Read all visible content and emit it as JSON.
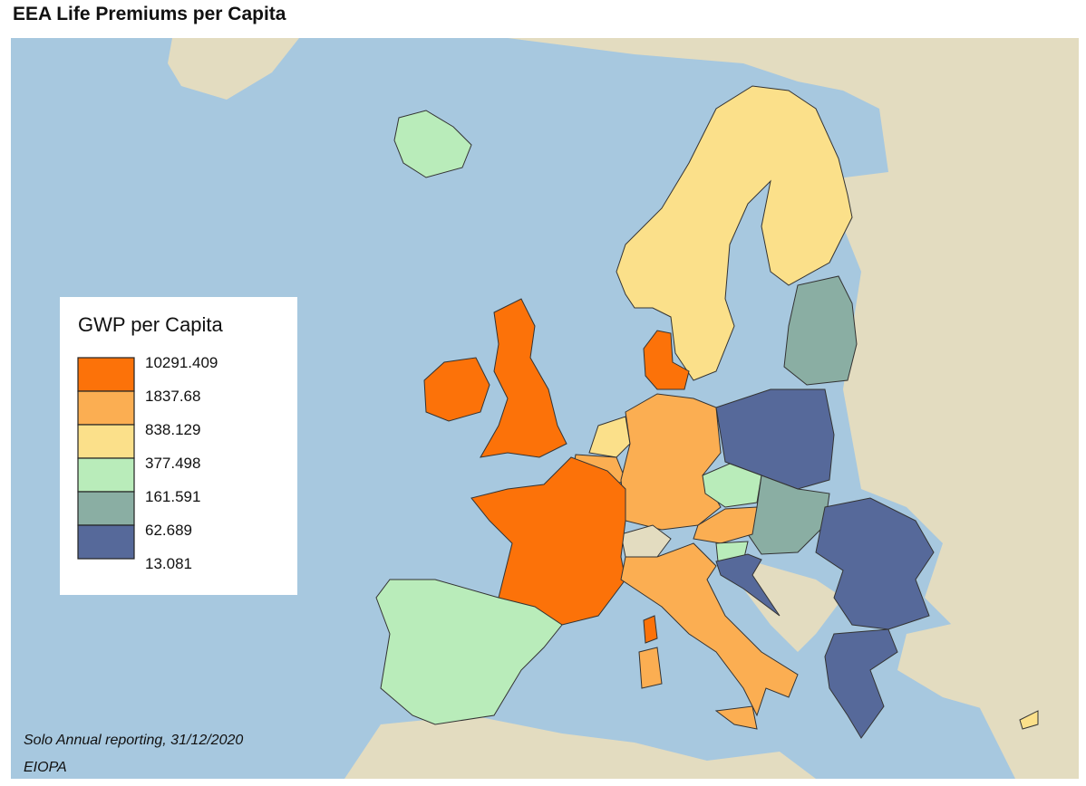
{
  "header": {
    "title": "EEA Life Premiums per Capita"
  },
  "legend": {
    "title": "GWP per Capita",
    "breaks": [
      "10291.409",
      "1837.68",
      "838.129",
      "377.498",
      "161.591",
      "62.689",
      "13.081"
    ],
    "colors": [
      "#fc7209",
      "#fbae52",
      "#fbe08a",
      "#b9ecba",
      "#8aaea3",
      "#56699a"
    ]
  },
  "footer": {
    "source": "Solo Annual reporting, 31/12/2020",
    "publisher": "EIOPA"
  }
}
